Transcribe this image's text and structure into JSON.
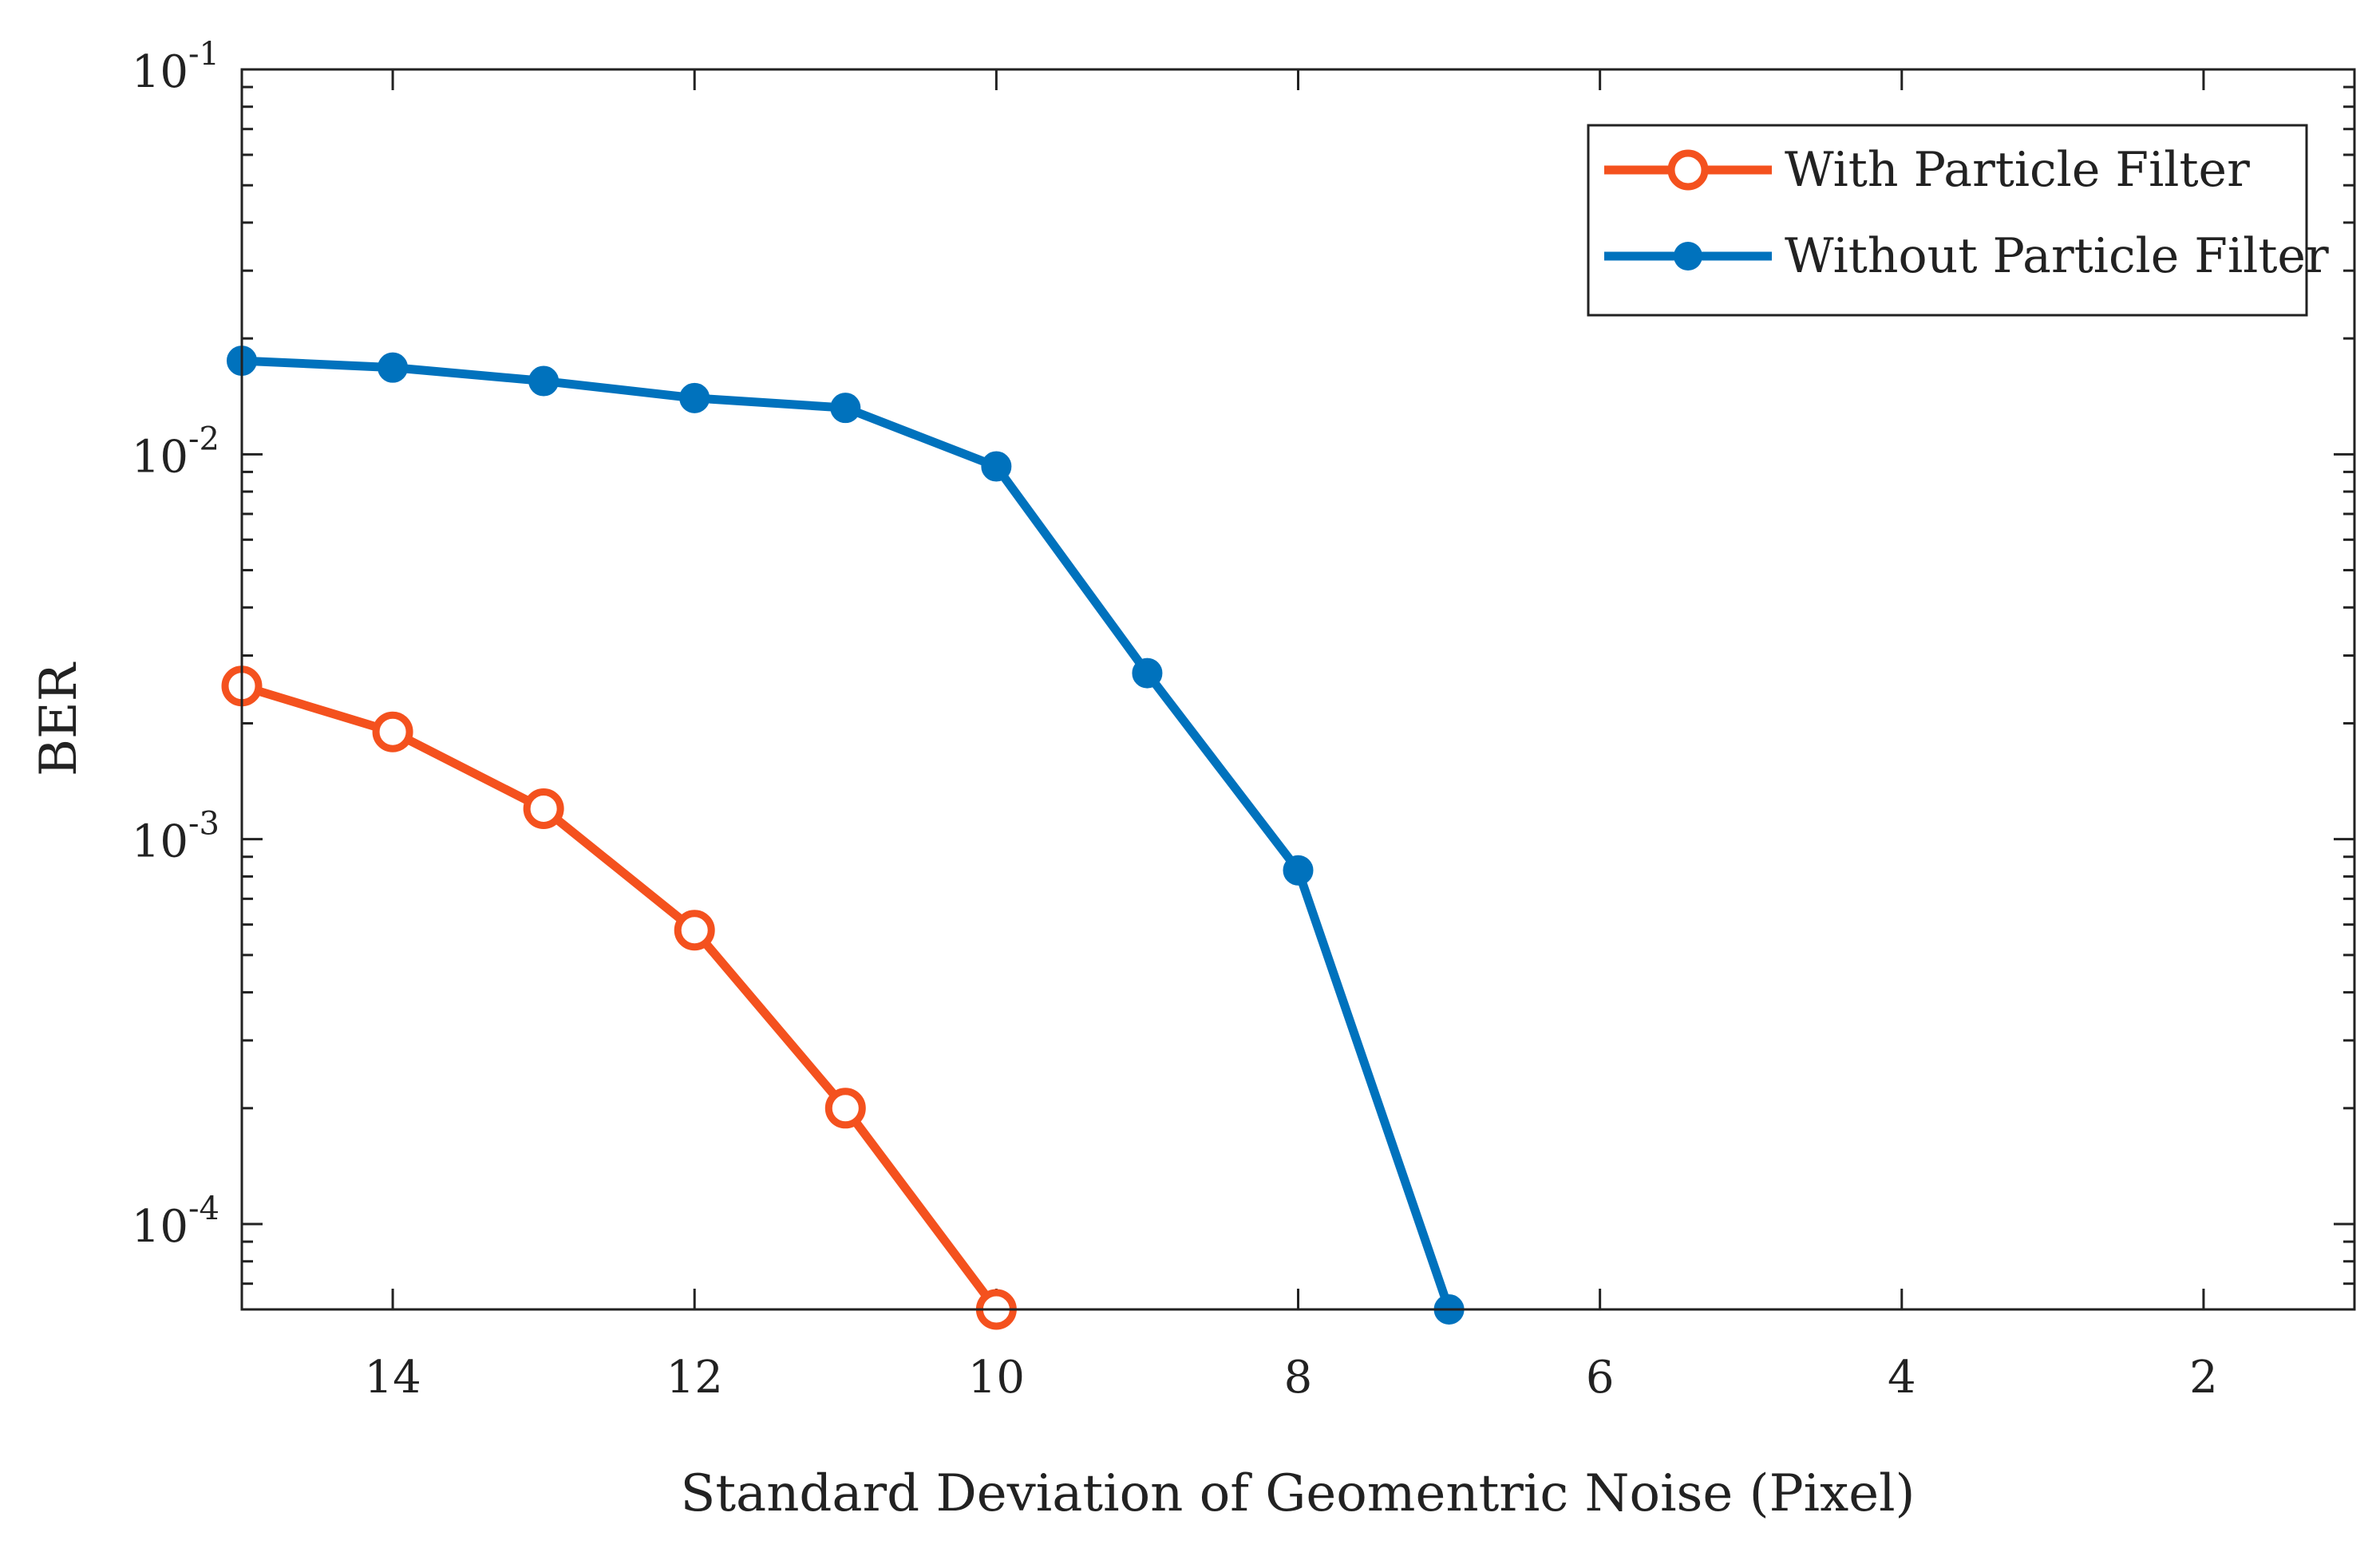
{
  "chart_data": {
    "type": "line",
    "title": "",
    "xlabel": "Standard Deviation of Geomentric Noise (Pixel)",
    "ylabel": "BER",
    "xlim": [
      15,
      1
    ],
    "x_reversed": true,
    "ylim": [
      6e-05,
      0.1
    ],
    "yscale": "log",
    "x_ticks": [
      14,
      12,
      10,
      8,
      6,
      4,
      2
    ],
    "y_ticks": [
      {
        "value": 0.0001,
        "base": "10",
        "exp": "-4"
      },
      {
        "value": 0.001,
        "base": "10",
        "exp": "-3"
      },
      {
        "value": 0.01,
        "base": "10",
        "exp": "-2"
      },
      {
        "value": 0.1,
        "base": "10",
        "exp": "-1"
      }
    ],
    "grid": false,
    "legend_position": "top-right",
    "series": [
      {
        "name": "With Particle Filter",
        "color": "#F4511E",
        "marker": "circle-open",
        "x": [
          15,
          14,
          13,
          12,
          11,
          10
        ],
        "y": [
          0.0025,
          0.0019,
          0.0012,
          0.00058,
          0.0002,
          6e-05
        ]
      },
      {
        "name": "Without Particle Filter",
        "color": "#0072BD",
        "marker": "filled",
        "x": [
          15,
          14,
          13,
          12,
          11,
          10,
          9,
          8,
          7
        ],
        "y": [
          0.0175,
          0.0168,
          0.0155,
          0.014,
          0.0132,
          0.0093,
          0.0027,
          0.00083,
          6e-05
        ]
      }
    ]
  }
}
